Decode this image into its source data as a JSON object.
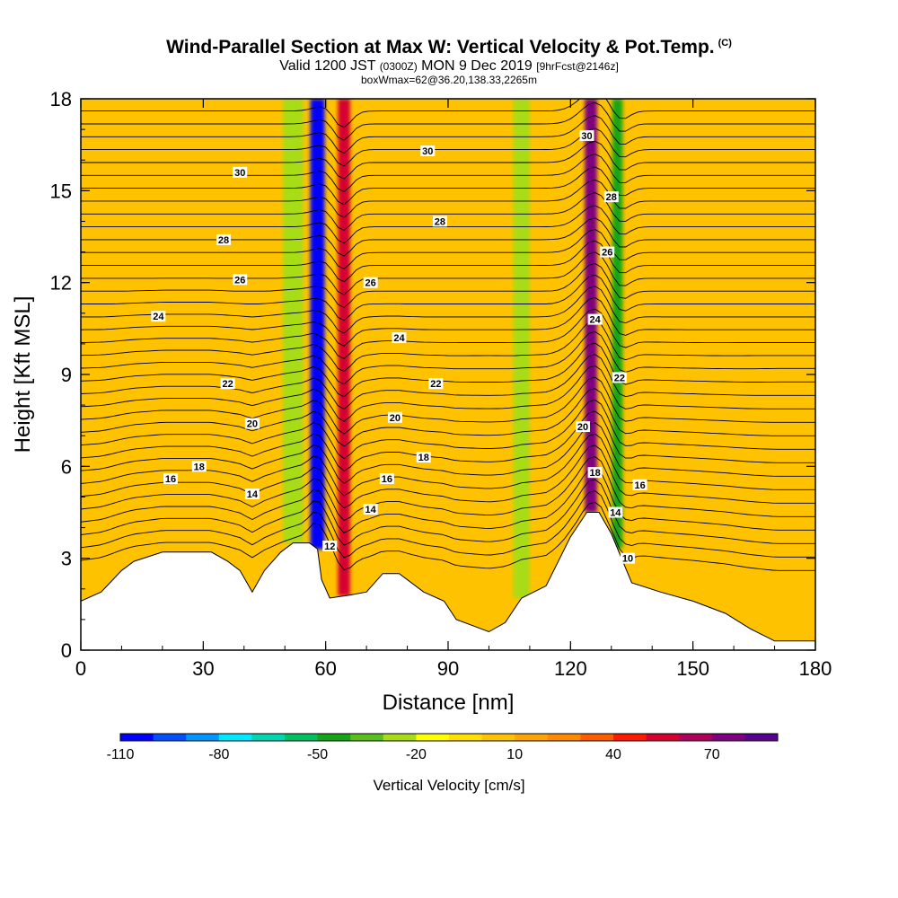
{
  "header": {
    "title_main": "Wind-Parallel Section at Max W: Vertical Velocity & Pot.Temp.",
    "title_mark": "(C)",
    "valid_prefix": "Valid 1200 JST",
    "valid_zulu": "(0300Z)",
    "valid_date": "MON 9 Dec 2019",
    "forecast_tag": "[9hrFcst@2146z]",
    "box_info": "boxWmax=62@36.20,138.33,2265m"
  },
  "chart_data": {
    "type": "heatmap",
    "title": "Wind-Parallel Section at Max W: Vertical Velocity & Pot.Temp.",
    "xlabel": "Distance [nm]",
    "ylabel": "Height [Kft MSL]",
    "xlim": [
      0,
      180
    ],
    "ylim": [
      0,
      18
    ],
    "x_ticks": [
      0,
      30,
      60,
      90,
      120,
      150,
      180
    ],
    "y_ticks": [
      0,
      3,
      6,
      9,
      12,
      15,
      18
    ],
    "colorbar": {
      "title": "Vertical Velocity [cm/s]",
      "levels": [
        -110,
        -100,
        -90,
        -80,
        -70,
        -60,
        -50,
        -40,
        -30,
        -20,
        -10,
        0,
        10,
        20,
        30,
        40,
        50,
        60,
        70,
        80
      ],
      "labels": [
        -110,
        -80,
        -50,
        -20,
        10,
        40,
        70
      ],
      "colors": [
        "#0000ff",
        "#0050ff",
        "#0095ff",
        "#00e8ff",
        "#00d6b0",
        "#00c060",
        "#16a516",
        "#59bf1d",
        "#a8dc16",
        "#ffff00",
        "#ffe000",
        "#ffc200",
        "#ffa500",
        "#ff8a00",
        "#ff5c00",
        "#ff1a00",
        "#d60030",
        "#b0005a",
        "#7e0080",
        "#5a0090"
      ]
    },
    "terrain": [
      [
        0,
        1.6
      ],
      [
        5,
        1.9
      ],
      [
        10,
        2.6
      ],
      [
        13,
        2.9
      ],
      [
        20,
        3.2
      ],
      [
        32,
        3.2
      ],
      [
        36,
        2.9
      ],
      [
        39,
        2.6
      ],
      [
        42,
        1.9
      ],
      [
        45,
        2.6
      ],
      [
        49,
        3.2
      ],
      [
        52,
        3.5
      ],
      [
        56,
        3.5
      ],
      [
        58,
        3.3
      ],
      [
        59,
        2.3
      ],
      [
        61,
        1.7
      ],
      [
        66,
        1.8
      ],
      [
        70,
        1.9
      ],
      [
        74,
        2.5
      ],
      [
        78,
        2.5
      ],
      [
        84,
        1.9
      ],
      [
        89,
        1.6
      ],
      [
        92,
        1.0
      ],
      [
        96,
        0.8
      ],
      [
        100,
        0.6
      ],
      [
        104,
        0.9
      ],
      [
        108,
        1.7
      ],
      [
        114,
        2.1
      ],
      [
        120,
        3.7
      ],
      [
        124,
        4.5
      ],
      [
        127,
        4.5
      ],
      [
        130,
        3.8
      ],
      [
        135,
        2.2
      ],
      [
        142,
        1.9
      ],
      [
        150,
        1.6
      ],
      [
        158,
        1.2
      ],
      [
        164,
        0.7
      ],
      [
        170,
        0.3
      ],
      [
        180,
        0.3
      ]
    ],
    "velocity_bands": [
      {
        "x": 58,
        "w": 3.5,
        "value": -105
      },
      {
        "x": 64.5,
        "w": 3,
        "value": 50
      },
      {
        "x": 52,
        "w": 5,
        "value": -30
      },
      {
        "x": 125,
        "w": 3,
        "value": 75
      },
      {
        "x": 131.5,
        "w": 2.5,
        "value": -45
      },
      {
        "x": 108,
        "w": 4,
        "value": -25
      }
    ],
    "isotherm_levels": [
      10,
      12,
      14,
      16,
      18,
      20,
      22,
      24,
      26,
      28,
      30
    ],
    "isotherm_labels": [
      {
        "value": "30",
        "x": 39,
        "y": 15.6
      },
      {
        "value": "30",
        "x": 85,
        "y": 16.3
      },
      {
        "value": "30",
        "x": 124,
        "y": 16.8
      },
      {
        "value": "28",
        "x": 35,
        "y": 13.4
      },
      {
        "value": "28",
        "x": 88,
        "y": 14.0
      },
      {
        "value": "28",
        "x": 130,
        "y": 14.8
      },
      {
        "value": "26",
        "x": 39,
        "y": 12.1
      },
      {
        "value": "26",
        "x": 71,
        "y": 12.0
      },
      {
        "value": "26",
        "x": 129,
        "y": 13.0
      },
      {
        "value": "24",
        "x": 19,
        "y": 10.9
      },
      {
        "value": "24",
        "x": 78,
        "y": 10.2
      },
      {
        "value": "24",
        "x": 126,
        "y": 10.8
      },
      {
        "value": "22",
        "x": 36,
        "y": 8.7
      },
      {
        "value": "22",
        "x": 87,
        "y": 8.7
      },
      {
        "value": "22",
        "x": 132,
        "y": 8.9
      },
      {
        "value": "20",
        "x": 42,
        "y": 7.4
      },
      {
        "value": "20",
        "x": 77,
        "y": 7.6
      },
      {
        "value": "20",
        "x": 123,
        "y": 7.3
      },
      {
        "value": "18",
        "x": 29,
        "y": 6.0
      },
      {
        "value": "18",
        "x": 84,
        "y": 6.3
      },
      {
        "value": "18",
        "x": 126,
        "y": 5.8
      },
      {
        "value": "16",
        "x": 22,
        "y": 5.6
      },
      {
        "value": "16",
        "x": 75,
        "y": 5.6
      },
      {
        "value": "16",
        "x": 137,
        "y": 5.4
      },
      {
        "value": "14",
        "x": 42,
        "y": 5.1
      },
      {
        "value": "14",
        "x": 71,
        "y": 4.6
      },
      {
        "value": "14",
        "x": 131,
        "y": 4.5
      },
      {
        "value": "12",
        "x": 61,
        "y": 3.4
      },
      {
        "value": "10",
        "x": 134,
        "y": 3.0
      }
    ]
  }
}
